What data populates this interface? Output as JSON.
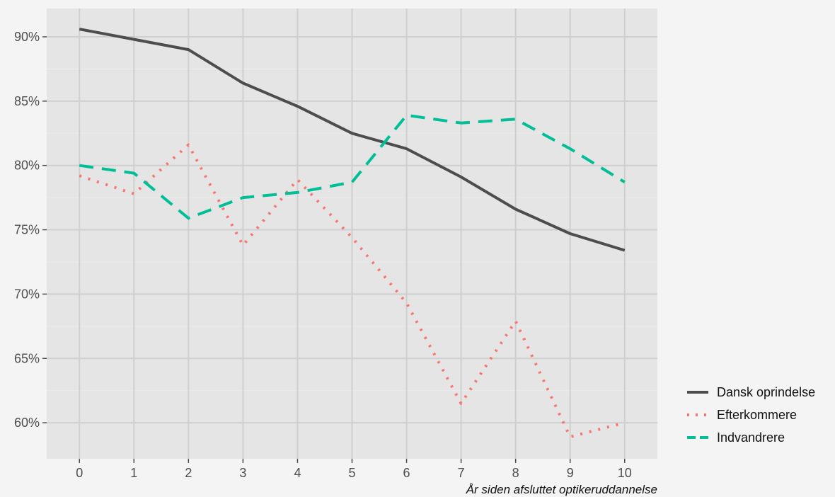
{
  "chart_data": {
    "type": "line",
    "title": "",
    "xlabel": "År siden afsluttet optikeruddannelse",
    "ylabel": "",
    "x": [
      0,
      1,
      2,
      3,
      4,
      5,
      6,
      7,
      8,
      9,
      10
    ],
    "xlim": [
      -0.6,
      10.6
    ],
    "ylim": [
      57.2,
      92.2
    ],
    "xticks": [
      0,
      1,
      2,
      3,
      4,
      5,
      6,
      7,
      8,
      9,
      10
    ],
    "yticks": [
      60,
      65,
      70,
      75,
      80,
      85,
      90
    ],
    "ytick_labels": [
      "60%",
      "65%",
      "70%",
      "75%",
      "80%",
      "85%",
      "90%"
    ],
    "grid": true,
    "legend_position": "right",
    "series": [
      {
        "name": "Dansk oprindelse",
        "color": "#4d4d4d",
        "dash": "solid",
        "values": [
          90.6,
          89.8,
          89.0,
          86.4,
          84.6,
          82.5,
          81.3,
          79.1,
          76.6,
          74.7,
          73.4
        ]
      },
      {
        "name": "Efterkommere",
        "color": "#f8766d",
        "dash": "dotted",
        "values": [
          79.2,
          77.8,
          81.6,
          73.8,
          78.9,
          74.4,
          69.3,
          61.5,
          67.9,
          58.9,
          60.0
        ]
      },
      {
        "name": "Indvandrere",
        "color": "#00bf96",
        "dash": "dashed",
        "values": [
          80.0,
          79.4,
          75.9,
          77.5,
          77.9,
          78.7,
          83.9,
          83.3,
          83.6,
          81.3,
          78.7
        ]
      }
    ]
  }
}
